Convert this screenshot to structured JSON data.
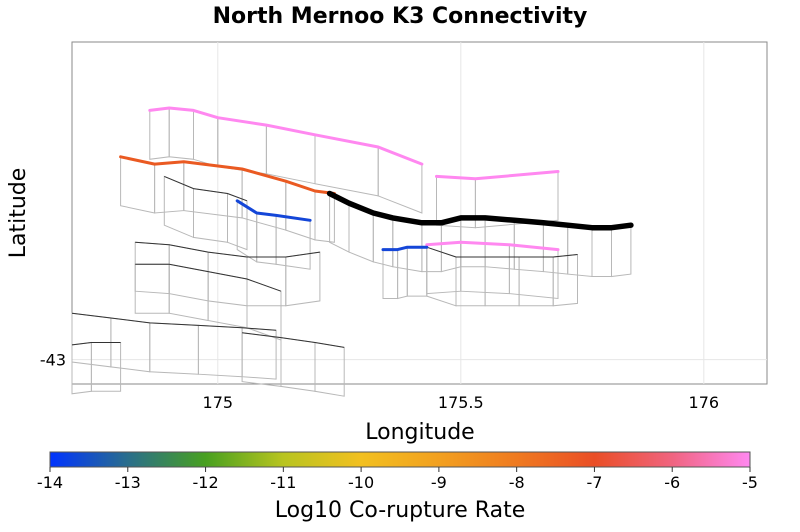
{
  "chart_data": {
    "type": "map",
    "title": "North Mernoo K3 Connectivity",
    "xlabel": "Longitude",
    "ylabel": "Latitude",
    "xlim": [
      174.7,
      176.13
    ],
    "ylim": [
      -43.05,
      -42.35
    ],
    "xticks": [
      {
        "value": 175,
        "label": "175"
      },
      {
        "value": 175.5,
        "label": "175.5"
      },
      {
        "value": 176,
        "label": "176"
      }
    ],
    "yticks": [
      {
        "value": -43,
        "label": "-43"
      }
    ],
    "grid": true,
    "colorbar": {
      "label": "Log10 Co-rupture Rate",
      "min": -14,
      "max": -5,
      "ticks": [
        "-14",
        "-13",
        "-12",
        "-11",
        "-10",
        "-9",
        "-8",
        "-7",
        "-6",
        "-5"
      ],
      "colors": [
        "#0033ff",
        "#2a6e8c",
        "#48a020",
        "#b8c420",
        "#f2c020",
        "#f2a020",
        "#ef7a20",
        "#ea4e26",
        "#f06480",
        "#ff88f0"
      ]
    },
    "target_fault": {
      "name": "North Mernoo K3",
      "color": "#000000",
      "trace": [
        [
          175.23,
          -42.66
        ],
        [
          175.27,
          -42.68
        ],
        [
          175.32,
          -42.7
        ],
        [
          175.36,
          -42.71
        ],
        [
          175.42,
          -42.72
        ],
        [
          175.46,
          -42.72
        ],
        [
          175.5,
          -42.71
        ],
        [
          175.55,
          -42.71
        ],
        [
          175.61,
          -42.715
        ],
        [
          175.67,
          -42.72
        ],
        [
          175.72,
          -42.725
        ],
        [
          175.77,
          -42.73
        ],
        [
          175.81,
          -42.73
        ],
        [
          175.85,
          -42.725
        ]
      ]
    },
    "co_rupturing_faults": [
      {
        "log10_rate": -5.2,
        "color": "#ff88f0",
        "trace": [
          [
            174.86,
            -42.49
          ],
          [
            174.9,
            -42.485
          ],
          [
            174.95,
            -42.49
          ],
          [
            175.0,
            -42.505
          ],
          [
            175.1,
            -42.52
          ],
          [
            175.2,
            -42.54
          ],
          [
            175.33,
            -42.565
          ],
          [
            175.42,
            -42.6
          ]
        ]
      },
      {
        "log10_rate": -6.8,
        "color": "#ea5a22",
        "trace": [
          [
            174.8,
            -42.585
          ],
          [
            174.87,
            -42.6
          ],
          [
            174.93,
            -42.595
          ],
          [
            175.05,
            -42.61
          ],
          [
            175.14,
            -42.635
          ],
          [
            175.2,
            -42.655
          ],
          [
            175.24,
            -42.66
          ]
        ]
      },
      {
        "log10_rate": -5.3,
        "color": "#ff88f0",
        "trace": [
          [
            175.45,
            -42.625
          ],
          [
            175.53,
            -42.63
          ],
          [
            175.7,
            -42.615
          ]
        ]
      },
      {
        "log10_rate": -5.6,
        "color": "#ff88f0",
        "trace": [
          [
            175.43,
            -42.765
          ],
          [
            175.5,
            -42.76
          ],
          [
            175.6,
            -42.765
          ],
          [
            175.7,
            -42.775
          ]
        ]
      },
      {
        "log10_rate": -13.9,
        "color": "#1446d8",
        "trace": [
          [
            175.04,
            -42.675
          ],
          [
            175.08,
            -42.7
          ],
          [
            175.12,
            -42.705
          ],
          [
            175.19,
            -42.715
          ]
        ]
      },
      {
        "log10_rate": -13.6,
        "color": "#1446d8",
        "trace": [
          [
            175.34,
            -42.775
          ],
          [
            175.37,
            -42.775
          ],
          [
            175.39,
            -42.77
          ],
          [
            175.43,
            -42.77
          ]
        ]
      }
    ],
    "non_participating_fault_traces": [
      [
        [
          174.89,
          -42.625
        ],
        [
          174.95,
          -42.65
        ],
        [
          175.02,
          -42.66
        ],
        [
          175.06,
          -42.675
        ]
      ],
      [
        [
          174.83,
          -42.76
        ],
        [
          174.9,
          -42.765
        ],
        [
          174.98,
          -42.78
        ],
        [
          175.06,
          -42.79
        ],
        [
          175.14,
          -42.79
        ],
        [
          175.21,
          -42.78
        ]
      ],
      [
        [
          174.83,
          -42.805
        ],
        [
          174.9,
          -42.805
        ],
        [
          174.98,
          -42.82
        ],
        [
          175.06,
          -42.835
        ],
        [
          175.13,
          -42.86
        ]
      ],
      [
        [
          174.7,
          -42.905
        ],
        [
          174.78,
          -42.915
        ],
        [
          174.86,
          -42.925
        ],
        [
          174.96,
          -42.93
        ],
        [
          175.05,
          -42.935
        ],
        [
          175.12,
          -42.94
        ]
      ],
      [
        [
          174.7,
          -42.97
        ],
        [
          174.74,
          -42.965
        ],
        [
          174.8,
          -42.965
        ]
      ],
      [
        [
          175.05,
          -42.945
        ],
        [
          175.13,
          -42.955
        ],
        [
          175.2,
          -42.965
        ],
        [
          175.26,
          -42.975
        ]
      ],
      [
        [
          175.43,
          -42.77
        ],
        [
          175.49,
          -42.79
        ],
        [
          175.55,
          -42.79
        ],
        [
          175.62,
          -42.79
        ],
        [
          175.69,
          -42.79
        ],
        [
          175.74,
          -42.785
        ]
      ]
    ]
  }
}
